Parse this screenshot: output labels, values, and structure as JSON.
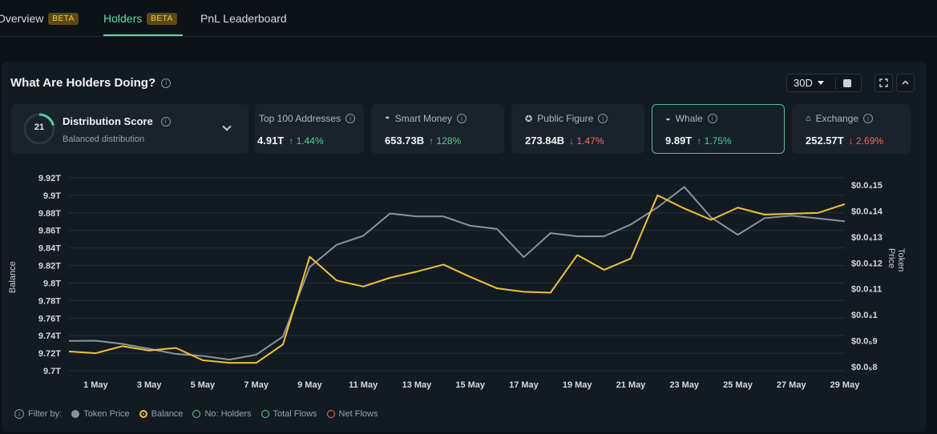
{
  "tabs": [
    {
      "label": "Overview",
      "badge": "BETA"
    },
    {
      "label": "Holders",
      "badge": "BETA"
    },
    {
      "label": "PnL Leaderboard",
      "badge": ""
    }
  ],
  "panel": {
    "title": "What Are Holders Doing?",
    "period": "30D",
    "buttons": [
      "calendar-icon",
      "fullscreen-icon",
      "collapse-icon"
    ]
  },
  "score": {
    "value": "21",
    "title": "Distribution Score",
    "subtitle": "Balanced distribution"
  },
  "stats": [
    {
      "label": "Top 100 Addresses",
      "icon": "list-icon",
      "value": "4.91T",
      "change": "↑ 1.44%",
      "direction": "up"
    },
    {
      "label": "Smart Money",
      "icon": "smart-money-icon",
      "value": "653.73B",
      "change": "↑ 128%",
      "direction": "up"
    },
    {
      "label": "Public Figure",
      "icon": "public-figure-icon",
      "value": "273.84B",
      "change": "↓ 1.47%",
      "direction": "down"
    },
    {
      "label": "Whale",
      "icon": "whale-icon",
      "value": "9.89T",
      "change": "↑ 1.75%",
      "direction": "up"
    },
    {
      "label": "Exchange",
      "icon": "exchange-icon",
      "value": "252.57T",
      "change": "↓ 2.69%",
      "direction": "down"
    }
  ],
  "chart_data": {
    "type": "line",
    "ylabel_left": "Balance",
    "ylabel_right": "Token Price",
    "left_ticks": [
      "9.92T",
      "9.9T",
      "9.88T",
      "9.86T",
      "9.84T",
      "9.82T",
      "9.8T",
      "9.78T",
      "9.76T",
      "9.74T",
      "9.72T",
      "9.7T"
    ],
    "right_ticks": [
      "$0.0₄15",
      "$0.0₄14",
      "$0.0₄13",
      "$0.0₄12",
      "$0.0₄11",
      "$0.0₄1",
      "$0.0₅9",
      "$0.0₅8"
    ],
    "x_ticks": [
      "1 May",
      "3 May",
      "5 May",
      "7 May",
      "9 May",
      "11 May",
      "13 May",
      "15 May",
      "17 May",
      "19 May",
      "21 May",
      "23 May",
      "25 May",
      "27 May",
      "29 May"
    ],
    "ylim_left": [
      9.7,
      9.92
    ],
    "ylim_right": [
      7.8e-06,
      1.52e-05
    ],
    "series": [
      {
        "name": "Balance",
        "color": "#f2c230",
        "axis": "left",
        "values": [
          9.722,
          9.72,
          9.728,
          9.723,
          9.726,
          9.712,
          9.709,
          9.709,
          9.73,
          9.83,
          9.803,
          9.796,
          9.806,
          9.813,
          9.821,
          9.807,
          9.794,
          9.79,
          9.789,
          9.832,
          9.815,
          9.828,
          9.9,
          9.885,
          9.872,
          9.886,
          9.878,
          9.879,
          9.88,
          9.89
        ]
      },
      {
        "name": "Token Price",
        "color": "#8a949c",
        "axis": "right",
        "values": [
          8.85e-06,
          8.86e-06,
          8.73e-06,
          8.53e-06,
          8.32e-06,
          8.24e-06,
          8.09e-06,
          8.29e-06,
          9.03e-06,
          1.186e-05,
          1.276e-05,
          1.313e-05,
          1.404e-05,
          1.392e-05,
          1.392e-05,
          1.354e-05,
          1.341e-05,
          1.226e-05,
          1.324e-05,
          1.311e-05,
          1.311e-05,
          1.359e-05,
          1.429e-05,
          1.512e-05,
          1.388e-05,
          1.317e-05,
          1.385e-05,
          1.395e-05,
          1.384e-05,
          1.372e-05
        ]
      }
    ],
    "grid": true
  },
  "filters": {
    "label": "Filter by:",
    "items": [
      {
        "label": "Token Price",
        "color": "#8a949c",
        "filled": true
      },
      {
        "label": "Balance",
        "color": "#f2c230",
        "filled": true
      },
      {
        "label": "No: Holders",
        "color": "#4ed19a",
        "filled": false
      },
      {
        "label": "Total Flows",
        "color": "#4ed19a",
        "filled": false
      },
      {
        "label": "Net Flows",
        "color": "#f06a6a",
        "filled": false
      }
    ]
  }
}
